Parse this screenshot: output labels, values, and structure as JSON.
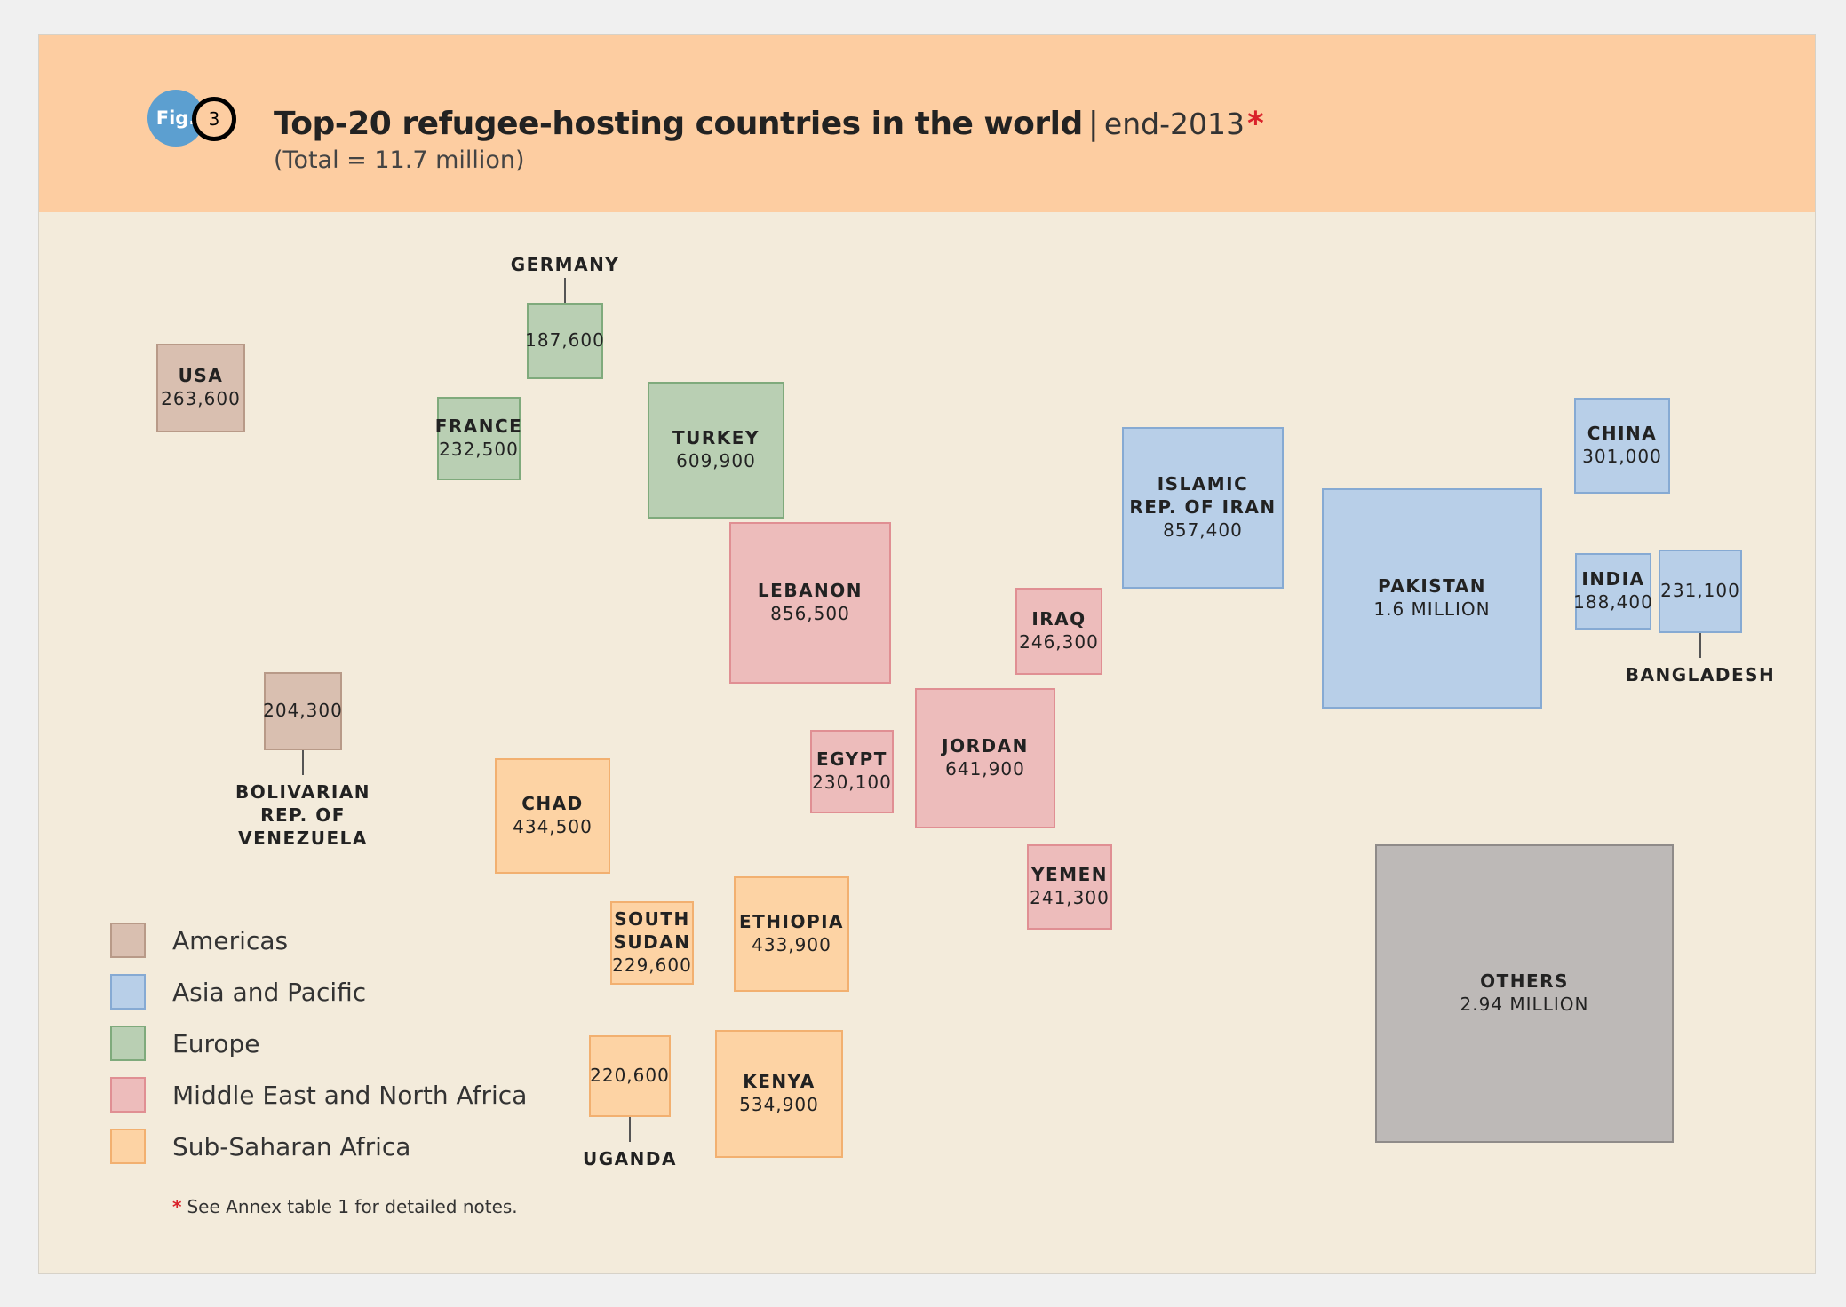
{
  "figure": {
    "badge_label": "Fig.",
    "number": "3"
  },
  "chart_data": {
    "type": "proportional-area",
    "title": "Top-20 refugee-hosting countries in the world",
    "subtitle": "end-2013",
    "title_marker": "*",
    "total_note": "(Total = 11.7 million)",
    "footnote": "See Annex table 1 for detailed notes.",
    "regions": [
      {
        "key": "americas",
        "name": "Americas",
        "fill": "#d9bfb0",
        "stroke": "#b89a88"
      },
      {
        "key": "asia",
        "name": "Asia and Pacific",
        "fill": "#b8cfe8",
        "stroke": "#86aad3"
      },
      {
        "key": "europe",
        "name": "Europe",
        "fill": "#b9cfb3",
        "stroke": "#7faa7c"
      },
      {
        "key": "mena",
        "name": "Middle East and North Africa",
        "fill": "#edbcbb",
        "stroke": "#e08f93"
      },
      {
        "key": "ssa",
        "name": "Sub-Saharan Africa",
        "fill": "#fdd3a4",
        "stroke": "#f2b070"
      },
      {
        "key": "other",
        "name": "",
        "fill": "#bdb9b7",
        "stroke": "#8f8b89"
      }
    ],
    "countries": [
      {
        "id": "usa",
        "name": "USA",
        "value": 263600,
        "value_label": "263,600",
        "region": "americas",
        "label_pos": "inside"
      },
      {
        "id": "venezuela",
        "name": "BOLIVARIAN\nREP. OF\nVENEZUELA",
        "value": 204300,
        "value_label": "204,300",
        "region": "americas",
        "label_pos": "below"
      },
      {
        "id": "germany",
        "name": "GERMANY",
        "value": 187600,
        "value_label": "187,600",
        "region": "europe",
        "label_pos": "above"
      },
      {
        "id": "france",
        "name": "FRANCE",
        "value": 232500,
        "value_label": "232,500",
        "region": "europe",
        "label_pos": "inside"
      },
      {
        "id": "turkey",
        "name": "TURKEY",
        "value": 609900,
        "value_label": "609,900",
        "region": "europe",
        "label_pos": "inside"
      },
      {
        "id": "lebanon",
        "name": "LEBANON",
        "value": 856500,
        "value_label": "856,500",
        "region": "mena",
        "label_pos": "inside"
      },
      {
        "id": "iraq",
        "name": "IRAQ",
        "value": 246300,
        "value_label": "246,300",
        "region": "mena",
        "label_pos": "inside"
      },
      {
        "id": "egypt",
        "name": "EGYPT",
        "value": 230100,
        "value_label": "230,100",
        "region": "mena",
        "label_pos": "inside"
      },
      {
        "id": "jordan",
        "name": "JORDAN",
        "value": 641900,
        "value_label": "641,900",
        "region": "mena",
        "label_pos": "inside"
      },
      {
        "id": "yemen",
        "name": "YEMEN",
        "value": 241300,
        "value_label": "241,300",
        "region": "mena",
        "label_pos": "inside"
      },
      {
        "id": "iran",
        "name": "ISLAMIC\nREP. OF IRAN",
        "value": 857400,
        "value_label": "857,400",
        "region": "asia",
        "label_pos": "inside"
      },
      {
        "id": "pakistan",
        "name": "PAKISTAN",
        "value": 1600000,
        "value_label": "1.6 MILLION",
        "region": "asia",
        "label_pos": "inside"
      },
      {
        "id": "china",
        "name": "CHINA",
        "value": 301000,
        "value_label": "301,000",
        "region": "asia",
        "label_pos": "inside"
      },
      {
        "id": "india",
        "name": "INDIA",
        "value": 188400,
        "value_label": "188,400",
        "region": "asia",
        "label_pos": "inside"
      },
      {
        "id": "bangladesh",
        "name": "BANGLADESH",
        "value": 231100,
        "value_label": "231,100",
        "region": "asia",
        "label_pos": "below"
      },
      {
        "id": "chad",
        "name": "CHAD",
        "value": 434500,
        "value_label": "434,500",
        "region": "ssa",
        "label_pos": "inside"
      },
      {
        "id": "south-sudan",
        "name": "SOUTH\nSUDAN",
        "value": 229600,
        "value_label": "229,600",
        "region": "ssa",
        "label_pos": "inside"
      },
      {
        "id": "ethiopia",
        "name": "ETHIOPIA",
        "value": 433900,
        "value_label": "433,900",
        "region": "ssa",
        "label_pos": "inside"
      },
      {
        "id": "uganda",
        "name": "UGANDA",
        "value": 220600,
        "value_label": "220,600",
        "region": "ssa",
        "label_pos": "below"
      },
      {
        "id": "kenya",
        "name": "KENYA",
        "value": 534900,
        "value_label": "534,900",
        "region": "ssa",
        "label_pos": "inside"
      },
      {
        "id": "others",
        "name": "OTHERS",
        "value": 2940000,
        "value_label": "2.94 MILLION",
        "region": "other",
        "label_pos": "inside"
      }
    ]
  }
}
